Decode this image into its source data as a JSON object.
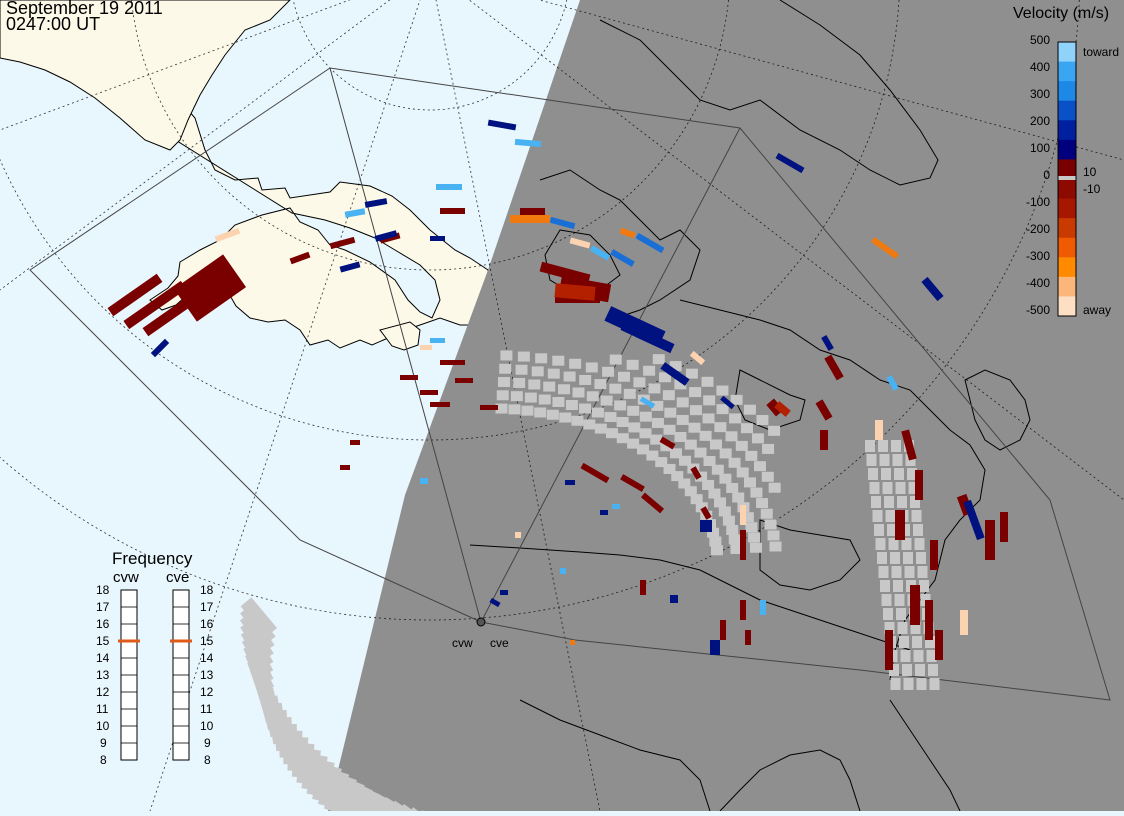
{
  "header": {
    "date": "September 19 2011",
    "time": "0247:00 UT"
  },
  "legend": {
    "title": "Velocity (m/s)",
    "tick_labels": [
      "500",
      "400",
      "300",
      "200",
      "100",
      "0",
      "-100",
      "-200",
      "-300",
      "-400",
      "-500"
    ],
    "inner_labels": [
      "10",
      "-10"
    ],
    "toward_label": "toward",
    "away_label": "away",
    "colors": [
      "#fde0c4",
      "#fbb77b",
      "#ff8a00",
      "#f05a00",
      "#c83a00",
      "#a71700",
      "#8c0a00",
      "#790000",
      "#00007f",
      "#0020a0",
      "#0a50c8",
      "#1d88e5",
      "#3aa6f2",
      "#8fd2fa"
    ],
    "low_velocity_color": "#c8c8c8"
  },
  "frequency": {
    "title": "Frequency",
    "radars": [
      "cvw",
      "cve"
    ],
    "scale": [
      "18",
      "17",
      "16",
      "15",
      "14",
      "13",
      "12",
      "11",
      "10",
      "9",
      "8"
    ],
    "cvw_value": 15,
    "cve_value": 15,
    "marker_color": "#e05a1a"
  },
  "radar_labels": [
    "cvw",
    "cve"
  ],
  "colors": {
    "ocean": "#e8f6fd",
    "land": "#fcf9e8",
    "night": "#8f8f8f",
    "gray_scatter": "#c8c8c8"
  }
}
